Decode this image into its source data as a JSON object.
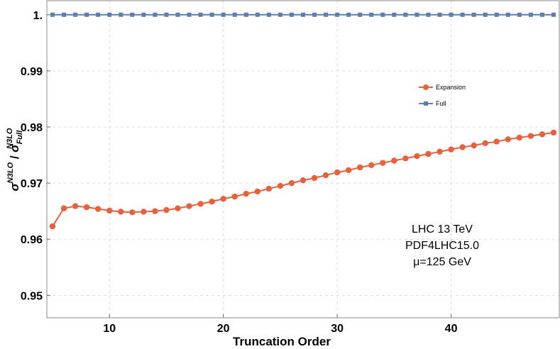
{
  "chart_data": {
    "type": "line",
    "xlabel": "Truncation Order",
    "ylabel": {
      "base": "σ",
      "sup": "N3LO",
      "sep": " / ",
      "base2": "σ",
      "sub2": "Full",
      "sup2": "N3LO"
    },
    "xlim": [
      4.5,
      49.5
    ],
    "ylim": [
      0.946,
      1.0025
    ],
    "xticks": [
      10,
      20,
      30,
      40
    ],
    "yticks": [
      0.95,
      0.96,
      0.97,
      0.98,
      0.99,
      1.0
    ],
    "ytick_labels": [
      "0.95",
      "0.96",
      "0.97",
      "0.98",
      "0.99",
      "1."
    ],
    "grid": true,
    "legend_position": "top-right",
    "series": [
      {
        "name": "Expansion",
        "color": "#e8603c",
        "marker": "circle",
        "x": [
          5,
          6,
          7,
          8,
          9,
          10,
          11,
          12,
          13,
          14,
          15,
          16,
          17,
          18,
          19,
          20,
          21,
          22,
          23,
          24,
          25,
          26,
          27,
          28,
          29,
          30,
          31,
          32,
          33,
          34,
          35,
          36,
          37,
          38,
          39,
          40,
          41,
          42,
          43,
          44,
          45,
          46,
          47,
          48,
          49
        ],
        "y": [
          0.9623,
          0.9655,
          0.9659,
          0.9657,
          0.9654,
          0.9651,
          0.9649,
          0.9648,
          0.9649,
          0.965,
          0.9652,
          0.9655,
          0.9659,
          0.9663,
          0.9667,
          0.9672,
          0.9676,
          0.9681,
          0.9685,
          0.969,
          0.9695,
          0.97,
          0.9705,
          0.9709,
          0.9714,
          0.9719,
          0.9723,
          0.9728,
          0.9732,
          0.9736,
          0.974,
          0.9744,
          0.9748,
          0.9752,
          0.9756,
          0.976,
          0.9764,
          0.9767,
          0.9771,
          0.9774,
          0.9778,
          0.9781,
          0.9784,
          0.9787,
          0.979
        ]
      },
      {
        "name": "Full",
        "color": "#5b7fb3",
        "marker": "square",
        "x": [
          5,
          6,
          7,
          8,
          9,
          10,
          11,
          12,
          13,
          14,
          15,
          16,
          17,
          18,
          19,
          20,
          21,
          22,
          23,
          24,
          25,
          26,
          27,
          28,
          29,
          30,
          31,
          32,
          33,
          34,
          35,
          36,
          37,
          38,
          39,
          40,
          41,
          42,
          43,
          44,
          45,
          46,
          47,
          48,
          49
        ],
        "y": [
          1,
          1,
          1,
          1,
          1,
          1,
          1,
          1,
          1,
          1,
          1,
          1,
          1,
          1,
          1,
          1,
          1,
          1,
          1,
          1,
          1,
          1,
          1,
          1,
          1,
          1,
          1,
          1,
          1,
          1,
          1,
          1,
          1,
          1,
          1,
          1,
          1,
          1,
          1,
          1,
          1,
          1,
          1,
          1,
          1
        ]
      }
    ],
    "annotations": [
      "LHC 13 TeV",
      "PDF4LHC15.0",
      "μ=125 GeV"
    ]
  }
}
